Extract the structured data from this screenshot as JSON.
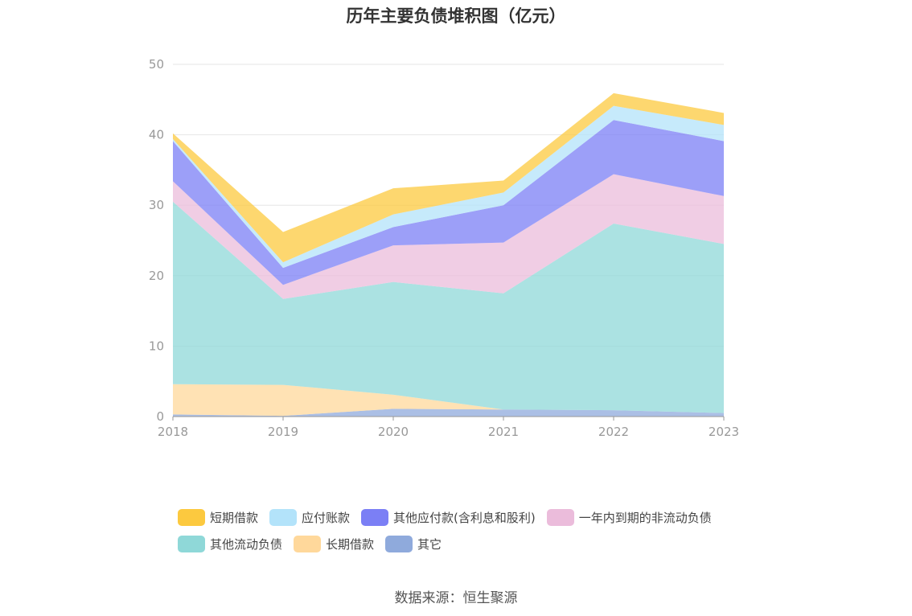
{
  "title": "历年主要负债堆积图（亿元）",
  "source": "数据来源：恒生聚源",
  "chart_data": {
    "type": "area",
    "stacked": true,
    "title": "历年主要负债堆积图（亿元）",
    "x": [
      "2018",
      "2019",
      "2020",
      "2021",
      "2022",
      "2023"
    ],
    "ylim": [
      0,
      50
    ],
    "yticks": [
      0,
      10,
      20,
      30,
      40,
      50
    ],
    "grid": true,
    "legend_position": "bottom",
    "series": [
      {
        "name": "其它",
        "color": "#8faadc",
        "values": [
          0.3,
          0.1,
          1.1,
          1.0,
          0.9,
          0.5
        ]
      },
      {
        "name": "长期借款",
        "color": "#ffd89b",
        "values": [
          4.3,
          4.4,
          2.0,
          0.0,
          0.0,
          0.0
        ]
      },
      {
        "name": "其他流动负债",
        "color": "#8fd8d8",
        "values": [
          25.9,
          12.2,
          16.0,
          16.5,
          26.5,
          24.0
        ]
      },
      {
        "name": "一年内到期的非流动负债",
        "color": "#ebbcdb",
        "values": [
          2.9,
          2.0,
          5.2,
          7.2,
          7.0,
          6.8
        ]
      },
      {
        "name": "其他应付款(含利息和股利)",
        "color": "#7b7ff5",
        "values": [
          5.7,
          2.4,
          2.6,
          5.3,
          7.7,
          7.8
        ]
      },
      {
        "name": "应付账款",
        "color": "#b3e3fa",
        "values": [
          0.3,
          0.8,
          1.8,
          1.8,
          2.0,
          2.3
        ]
      },
      {
        "name": "短期借款",
        "color": "#fcc93f",
        "values": [
          0.8,
          4.3,
          3.7,
          1.7,
          1.8,
          1.7
        ]
      }
    ]
  },
  "legend": {
    "rows": [
      [
        "短期借款",
        "应付账款",
        "其他应付款(含利息和股利)",
        "一年内到期的非流动负债"
      ],
      [
        "其他流动负债",
        "长期借款",
        "其它"
      ]
    ]
  }
}
